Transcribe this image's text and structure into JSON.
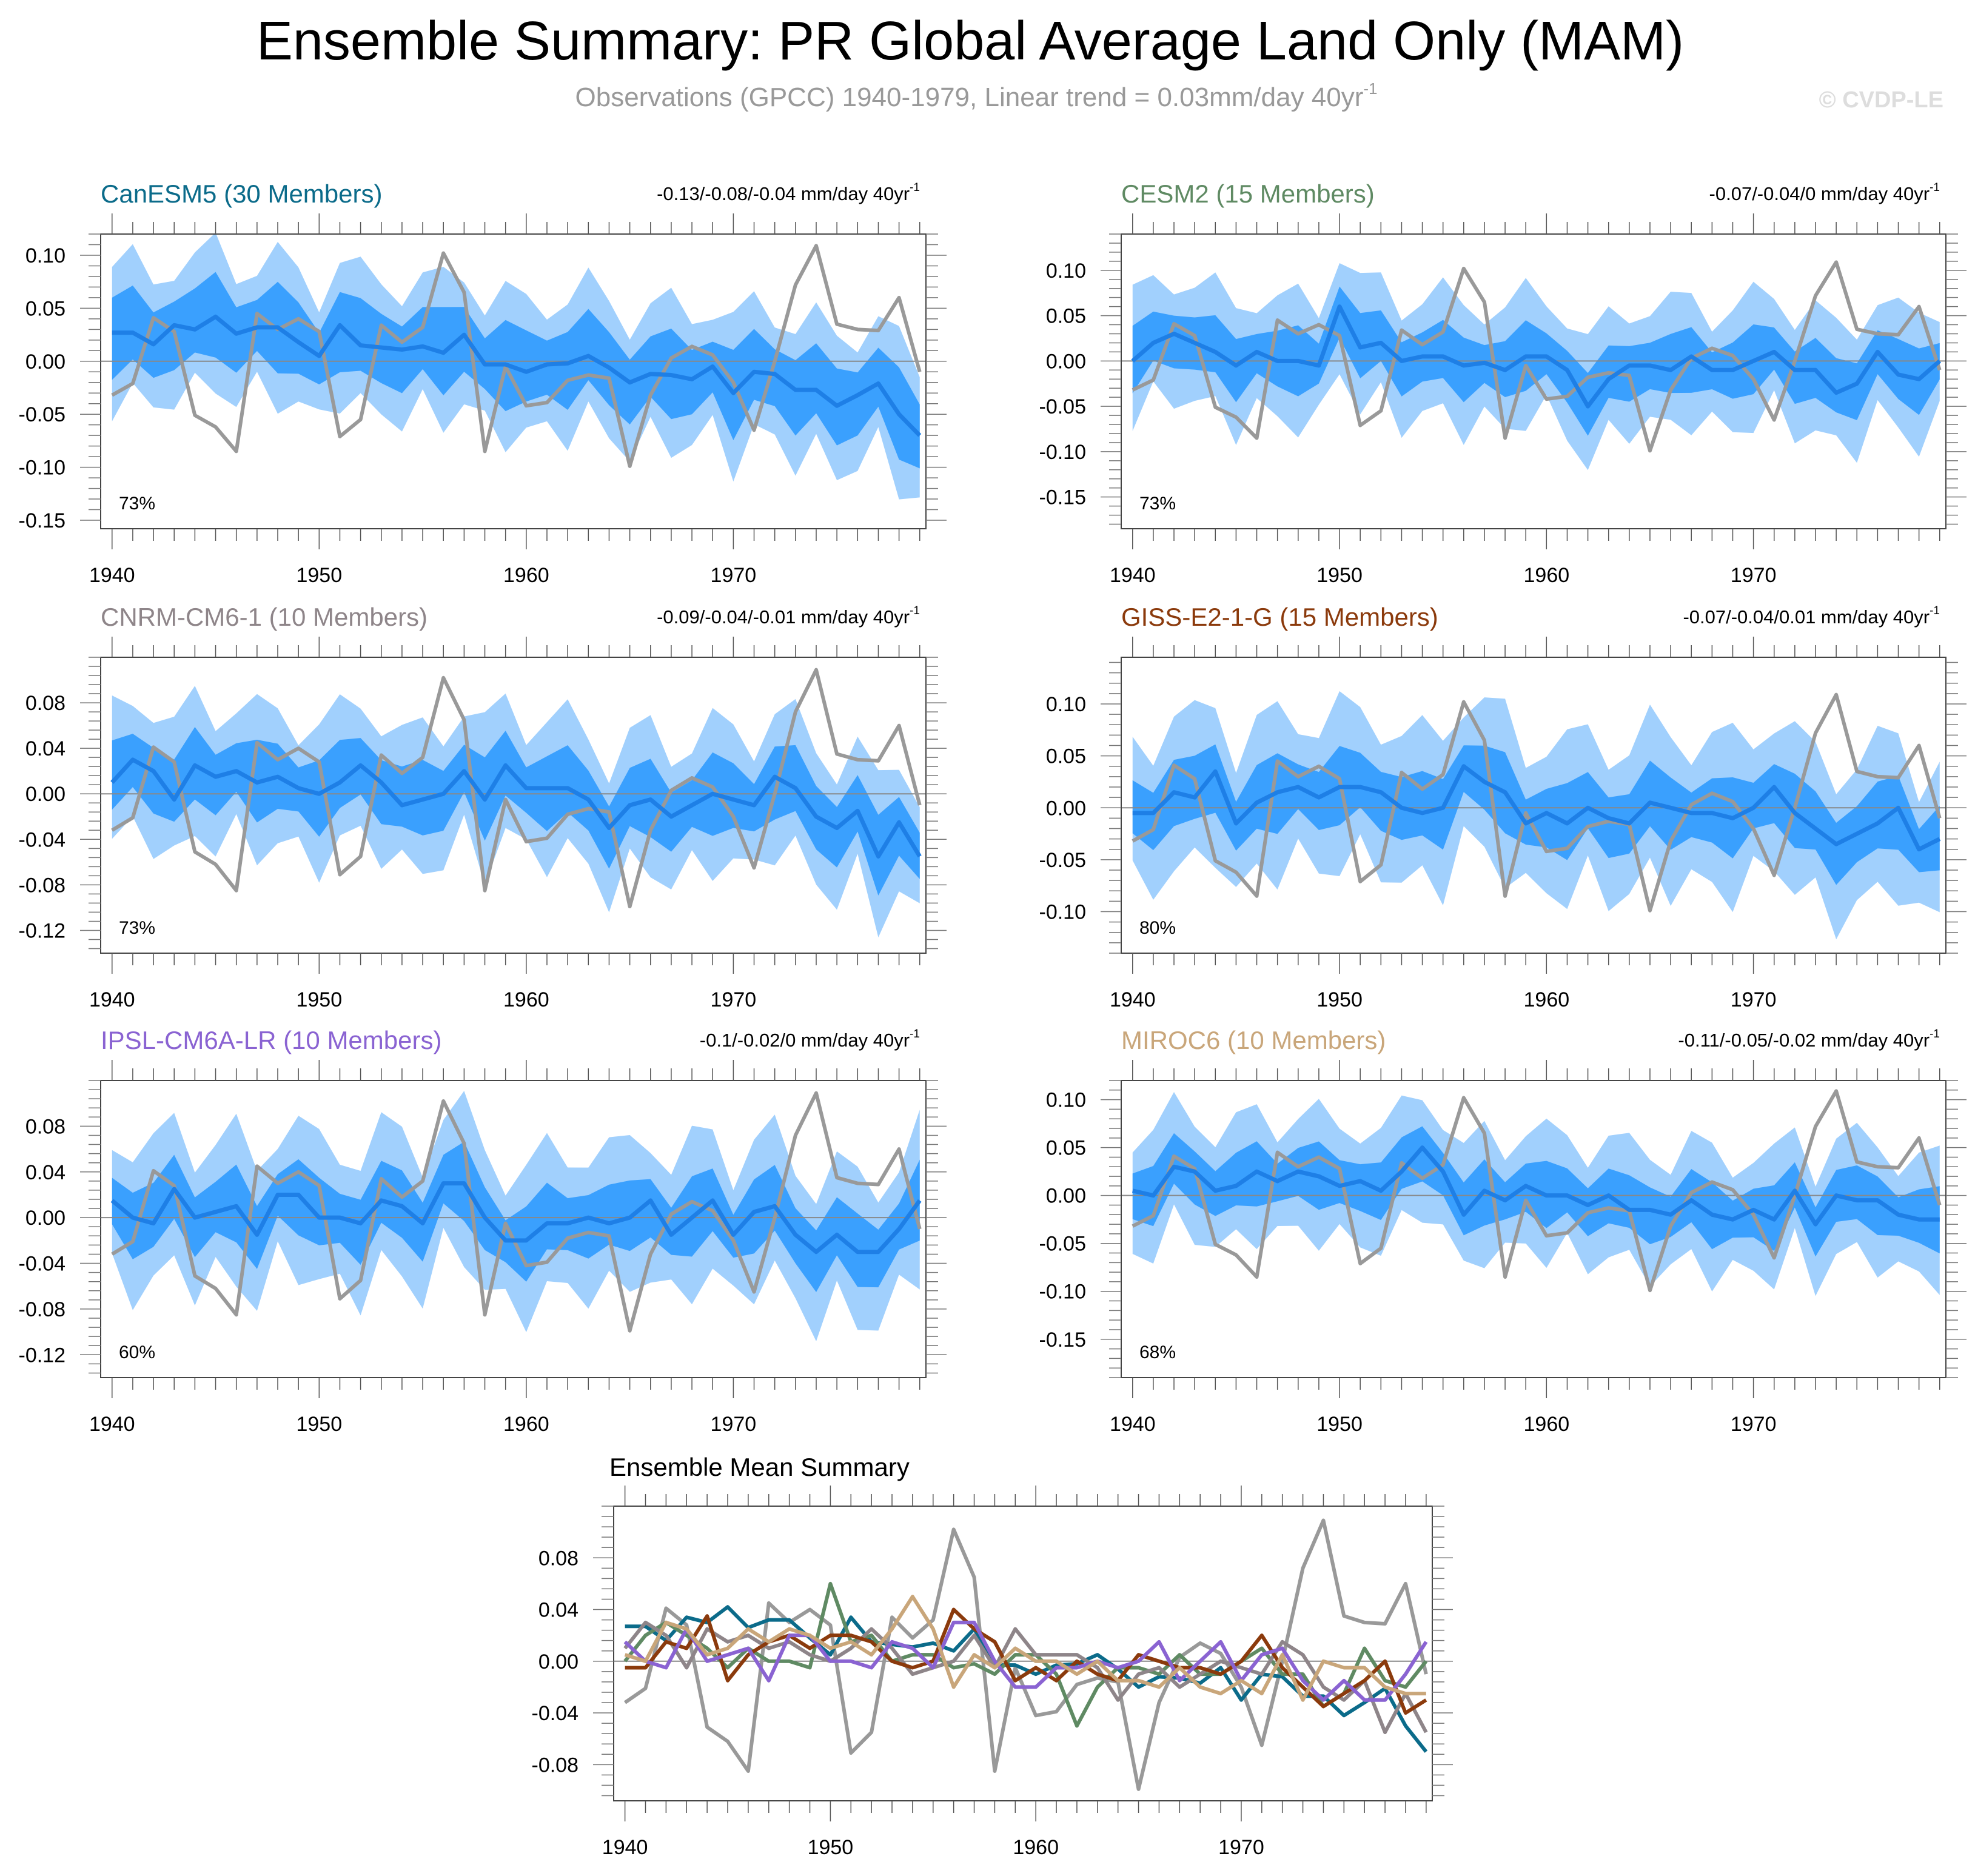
{
  "title": "Ensemble Summary: PR Global Average Land Only (MAM)",
  "subtitle": "Observations (GPCC) 1940-1979, Linear trend = 0.03mm/day 40yr",
  "subtitle_sup": "-1",
  "watermark": "© CVDP-LE",
  "trend_sup": "-1",
  "colors": {
    "obs": "#999999",
    "band_outer": "#a1d0fd",
    "band_inner": "#3aa0fe",
    "mean_line": "#1e7fe6",
    "zero_line": "#888888"
  },
  "chart_data": {
    "type": "line",
    "x_start": 1940,
    "x_end": 1979,
    "x_ticks": [
      "1940",
      "1950",
      "1960",
      "1970"
    ],
    "observations": {
      "name": "GPCC",
      "values": [
        -0.032,
        -0.021,
        0.041,
        0.028,
        -0.051,
        -0.062,
        -0.085,
        0.045,
        0.03,
        0.04,
        0.028,
        -0.071,
        -0.055,
        0.034,
        0.018,
        0.032,
        0.102,
        0.065,
        -0.085,
        -0.005,
        -0.042,
        -0.039,
        -0.018,
        -0.013,
        -0.016,
        -0.099,
        -0.032,
        0.003,
        0.014,
        0.006,
        -0.02,
        -0.065,
        0.0,
        0.072,
        0.109,
        0.035,
        0.03,
        0.029,
        0.06,
        -0.01
      ]
    },
    "panels": [
      {
        "title": "CanESM5 (30 Members)",
        "color": "#0b6b8a",
        "trend": "-0.13/-0.08/-0.04 mm/day 40yr",
        "percent": "73%",
        "ylim": [
          -0.158,
          0.12
        ],
        "y_ticks": [
          "0.10",
          "0.05",
          "0.00",
          "-0.05",
          "-0.10",
          "-0.15"
        ],
        "y_tick_values": [
          0.1,
          0.05,
          0,
          -0.05,
          -0.1,
          -0.15
        ],
        "inner_halfwidth": 0.033,
        "outer_halfwidth": 0.062,
        "mean": [
          0.027,
          0.027,
          0.016,
          0.034,
          0.03,
          0.042,
          0.026,
          0.032,
          0.032,
          0.018,
          0.005,
          0.034,
          0.015,
          0.013,
          0.011,
          0.014,
          0.008,
          0.025,
          -0.003,
          -0.003,
          -0.01,
          -0.003,
          -0.002,
          0.005,
          -0.006,
          -0.02,
          -0.012,
          -0.013,
          -0.017,
          -0.005,
          -0.03,
          -0.01,
          -0.012,
          -0.027,
          -0.027,
          -0.042,
          -0.032,
          -0.021,
          -0.05,
          -0.07
        ]
      },
      {
        "title": "CESM2 (15 Members)",
        "color": "#5f8a63",
        "trend": "-0.07/-0.04/0 mm/day 40yr",
        "percent": "73%",
        "ylim": [
          -0.185,
          0.14
        ],
        "y_ticks": [
          "0.10",
          "0.05",
          "0.00",
          "-0.05",
          "-0.10",
          "-0.15"
        ],
        "y_tick_values": [
          0.1,
          0.05,
          0,
          -0.05,
          -0.1,
          -0.15
        ],
        "inner_halfwidth": 0.03,
        "outer_halfwidth": 0.065,
        "mean": [
          0.0,
          0.02,
          0.03,
          0.02,
          0.01,
          -0.005,
          0.01,
          0.0,
          0.0,
          -0.005,
          0.06,
          0.015,
          0.02,
          0.0,
          0.005,
          0.005,
          -0.005,
          -0.002,
          -0.01,
          0.005,
          0.005,
          -0.01,
          -0.05,
          -0.02,
          -0.005,
          -0.005,
          -0.01,
          0.005,
          -0.01,
          -0.01,
          0.0,
          0.01,
          -0.01,
          -0.01,
          -0.035,
          -0.025,
          0.01,
          -0.015,
          -0.02,
          0.0
        ]
      },
      {
        "title": "CNRM-CM6-1 (10 Members)",
        "color": "#8e8589",
        "trend": "-0.09/-0.04/-0.01 mm/day 40yr",
        "percent": "73%",
        "ylim": [
          -0.14,
          0.12
        ],
        "y_ticks": [
          "0.08",
          "0.04",
          "0.00",
          "-0.04",
          "-0.08",
          "-0.12"
        ],
        "y_tick_values": [
          0.08,
          0.04,
          0,
          -0.04,
          -0.08,
          -0.12
        ],
        "inner_halfwidth": 0.028,
        "outer_halfwidth": 0.058,
        "mean": [
          0.01,
          0.03,
          0.02,
          -0.005,
          0.025,
          0.015,
          0.02,
          0.01,
          0.015,
          0.005,
          0.0,
          0.01,
          0.025,
          0.01,
          -0.01,
          -0.005,
          0.0,
          0.02,
          -0.005,
          0.025,
          0.005,
          0.005,
          0.005,
          -0.005,
          -0.03,
          -0.01,
          -0.005,
          -0.02,
          -0.01,
          0.0,
          -0.005,
          -0.01,
          0.015,
          0.005,
          -0.02,
          -0.03,
          -0.015,
          -0.055,
          -0.025,
          -0.055
        ]
      },
      {
        "title": "GISS-E2-1-G (15 Members)",
        "color": "#8b3a0c",
        "trend": "-0.07/-0.04/0.01 mm/day 40yr",
        "percent": "80%",
        "ylim": [
          -0.14,
          0.145
        ],
        "y_ticks": [
          "0.10",
          "0.05",
          "0.00",
          "-0.05",
          "-0.10"
        ],
        "y_tick_values": [
          0.1,
          0.05,
          0,
          -0.05,
          -0.1
        ],
        "inner_halfwidth": 0.03,
        "outer_halfwidth": 0.07,
        "mean": [
          -0.005,
          -0.005,
          0.015,
          0.01,
          0.035,
          -0.015,
          0.005,
          0.015,
          0.02,
          0.01,
          0.02,
          0.02,
          0.015,
          0.0,
          -0.005,
          0.0,
          0.04,
          0.025,
          0.015,
          -0.015,
          -0.005,
          -0.015,
          0.0,
          -0.01,
          -0.015,
          0.005,
          0.0,
          -0.005,
          -0.005,
          -0.01,
          0.0,
          0.02,
          -0.005,
          -0.02,
          -0.035,
          -0.025,
          -0.015,
          0.0,
          -0.04,
          -0.03
        ]
      },
      {
        "title": "IPSL-CM6A-LR (10 Members)",
        "color": "#8a63d2",
        "trend": "-0.1/-0.02/0 mm/day 40yr",
        "percent": "60%",
        "ylim": [
          -0.14,
          0.12
        ],
        "y_ticks": [
          "0.08",
          "0.04",
          "0.00",
          "-0.04",
          "-0.08",
          "-0.12"
        ],
        "y_tick_values": [
          0.08,
          0.04,
          0,
          -0.04,
          -0.08,
          -0.12
        ],
        "inner_halfwidth": 0.027,
        "outer_halfwidth": 0.06,
        "mean": [
          0.015,
          0.0,
          -0.005,
          0.025,
          0.0,
          0.005,
          0.01,
          -0.015,
          0.02,
          0.02,
          0.0,
          0.0,
          -0.005,
          0.015,
          0.01,
          -0.005,
          0.03,
          0.03,
          0.0,
          -0.02,
          -0.02,
          -0.005,
          -0.005,
          0.0,
          -0.005,
          0.0,
          0.015,
          -0.015,
          0.0,
          0.015,
          -0.015,
          0.005,
          0.01,
          -0.015,
          -0.03,
          -0.015,
          -0.03,
          -0.03,
          -0.01,
          0.015
        ]
      },
      {
        "title": "MIROC6 (10 Members)",
        "color": "#c9a67a",
        "trend": "-0.11/-0.05/-0.02 mm/day 40yr",
        "percent": "68%",
        "ylim": [
          -0.19,
          0.12
        ],
        "y_ticks": [
          "0.10",
          "0.05",
          "0.00",
          "-0.05",
          "-0.10",
          "-0.15"
        ],
        "y_tick_values": [
          0.1,
          0.05,
          0,
          -0.05,
          -0.1,
          -0.15
        ],
        "inner_halfwidth": 0.027,
        "outer_halfwidth": 0.06,
        "mean": [
          0.005,
          0.0,
          0.03,
          0.025,
          0.005,
          0.01,
          0.025,
          0.015,
          0.025,
          0.02,
          0.01,
          0.015,
          0.005,
          0.025,
          0.05,
          0.025,
          -0.02,
          0.005,
          -0.005,
          0.01,
          0.0,
          0.0,
          -0.01,
          0.0,
          -0.015,
          -0.015,
          -0.02,
          -0.005,
          -0.02,
          -0.025,
          -0.015,
          -0.025,
          0.005,
          -0.03,
          0.0,
          -0.005,
          -0.005,
          -0.02,
          -0.025,
          -0.025
        ]
      }
    ],
    "summary": {
      "title": "Ensemble Mean Summary",
      "ylim": [
        -0.108,
        0.12
      ],
      "y_ticks": [
        "0.08",
        "0.04",
        "0.00",
        "-0.04",
        "-0.08"
      ],
      "y_tick_values": [
        0.08,
        0.04,
        0,
        -0.04,
        -0.08
      ]
    }
  }
}
